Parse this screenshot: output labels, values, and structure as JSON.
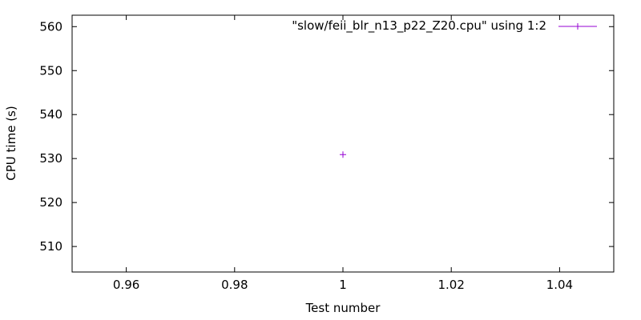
{
  "chart_data": {
    "type": "scatter",
    "xlabel": "Test number",
    "ylabel": "CPU time (s)",
    "xlim": [
      0.95,
      1.05
    ],
    "ylim": [
      504.2,
      562.6
    ],
    "xticks": [
      0.96,
      0.98,
      1,
      1.02,
      1.04
    ],
    "xtick_labels": [
      "0.96",
      "0.98",
      "1",
      "1.02",
      "1.04"
    ],
    "yticks": [
      510,
      520,
      530,
      540,
      550,
      560
    ],
    "ytick_labels": [
      "510",
      "520",
      "530",
      "540",
      "550",
      "560"
    ],
    "grid": false,
    "legend_position": "top-right",
    "series": [
      {
        "name": "\"slow/feii_blr_n13_p22_Z20.cpu\" using 1:2",
        "color": "#9400d3",
        "marker": "plus",
        "points": [
          {
            "x": 1,
            "y": 530.9
          }
        ]
      }
    ]
  }
}
